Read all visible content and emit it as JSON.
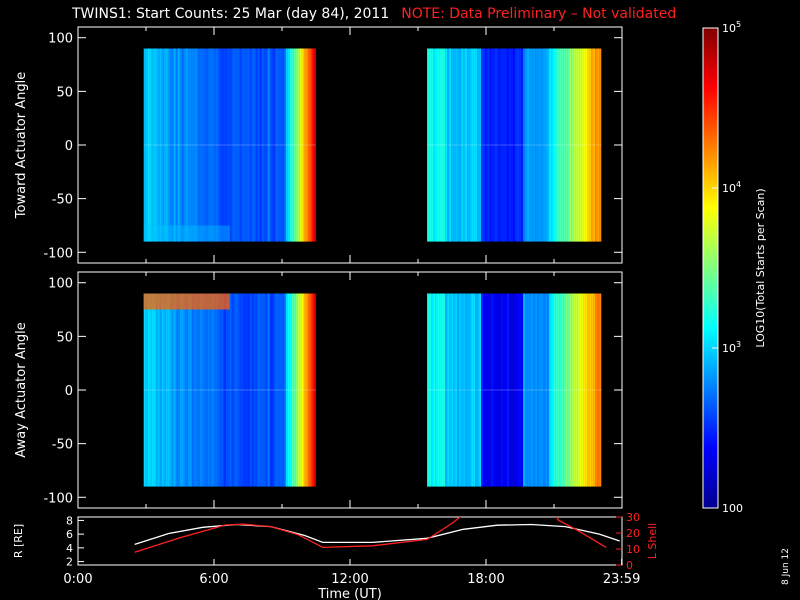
{
  "title": {
    "main": "TWINS1: Start Counts: 25 Mar (day  84), 2011",
    "note": "NOTE: Data Preliminary – Not validated"
  },
  "date_stamp": "8 Jun 12",
  "colors": {
    "background": "#000000",
    "note": "#ff2020",
    "r_line": "#ffffff",
    "lshell_line": "#ff2020"
  },
  "chart_data": [
    {
      "type": "heatmap",
      "ylabel": "Toward Actuator Angle",
      "xlim": [
        0,
        24
      ],
      "ylim": [
        -110,
        110
      ],
      "yticks": [
        "100",
        "50",
        "0",
        "-50",
        "-100"
      ],
      "data_blocks_hours": [
        [
          2.9,
          10.5
        ],
        [
          15.4,
          23.1
        ]
      ],
      "angle_range": [
        -90,
        90
      ],
      "colorscale": "jet",
      "scale": "log"
    },
    {
      "type": "heatmap",
      "ylabel": "Away Actuator Angle",
      "xlim": [
        0,
        24
      ],
      "ylim": [
        -110,
        110
      ],
      "yticks": [
        "100",
        "50",
        "0",
        "-50",
        "-100"
      ],
      "data_blocks_hours": [
        [
          2.9,
          10.5
        ],
        [
          15.4,
          23.1
        ]
      ],
      "angle_range": [
        -90,
        90
      ],
      "colorscale": "jet",
      "scale": "log"
    },
    {
      "type": "line",
      "ylabel": "R [RE]",
      "y2label": "L Shell",
      "xlabel": "Time (UT)",
      "xlim": [
        0,
        24
      ],
      "xticks": [
        "0:00",
        "6:00",
        "12:00",
        "18:00",
        "23:59"
      ],
      "ylim_left": [
        1.5,
        8.5
      ],
      "yticks_left": [
        "8",
        "6",
        "4",
        "2"
      ],
      "ylim_right": [
        0,
        30
      ],
      "yticks_right": [
        "30",
        "20",
        "10",
        "0"
      ],
      "series": [
        {
          "axis": "left",
          "color": "#ffffff",
          "x": [
            2.5,
            4,
            5.5,
            7,
            8.5,
            10,
            10.8,
            13,
            15.4,
            17,
            18.5,
            20,
            21.5,
            23,
            23.9
          ],
          "y": [
            4.5,
            6.1,
            7.0,
            7.4,
            7.1,
            5.8,
            4.8,
            4.8,
            5.4,
            6.7,
            7.3,
            7.4,
            7.1,
            6.0,
            5.0
          ]
        },
        {
          "axis": "right",
          "color": "#ff2020",
          "x": [
            2.5,
            4.5,
            6.5,
            7.3,
            8.5,
            9.7,
            10.8,
            13,
            15.4,
            16.5,
            17.3,
            17.8,
            20.7,
            21.2,
            22,
            23.3
          ],
          "y": [
            8,
            17,
            25,
            25.5,
            24,
            19,
            11,
            12,
            16,
            26,
            35,
            40,
            40,
            28,
            22,
            11
          ]
        }
      ]
    },
    {
      "type": "colorbar",
      "label": "LOG10(Total Starts per Scan)",
      "scale": "log",
      "range": [
        100,
        100000
      ],
      "tick_labels": [
        "10^5",
        "10^4",
        "10^3",
        "100"
      ]
    }
  ]
}
